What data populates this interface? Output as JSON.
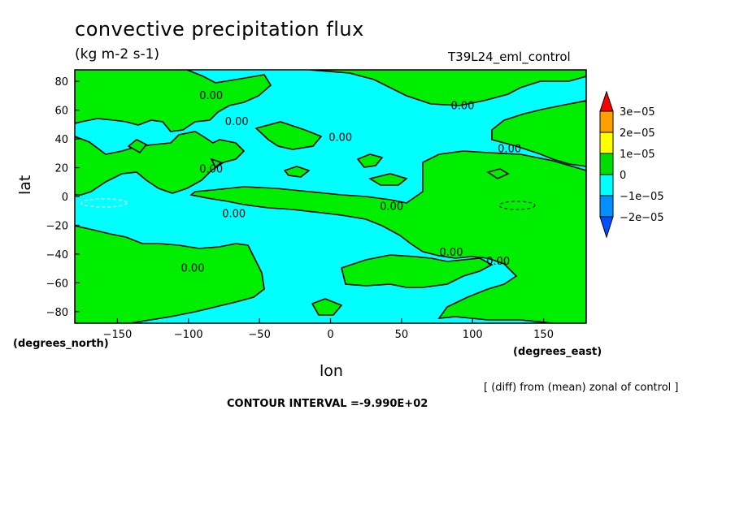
{
  "header": {
    "title": "convective precipitation flux",
    "units": "(kg m-2 s-1)",
    "experiment": "T39L24_eml_control"
  },
  "footer": {
    "note": "[ (diff) from (mean) zonal of control ]",
    "contour_interval": "CONTOUR INTERVAL =-9.990E+02"
  },
  "chart_data": {
    "type": "heatmap",
    "title": "convective precipitation flux",
    "subtitle": "(kg m-2 s-1)",
    "xlabel": "lon",
    "ylabel": "lat",
    "x_units": "(degrees_east)",
    "y_units": "(degrees_north)",
    "xlim": [
      -180,
      180
    ],
    "ylim": [
      -88,
      88
    ],
    "x_ticks": [
      -150,
      -100,
      -50,
      0,
      50,
      100,
      150
    ],
    "x_tick_labels": [
      "−150",
      "−100",
      "−50",
      "0",
      "50",
      "100",
      "150"
    ],
    "y_ticks": [
      80,
      60,
      40,
      20,
      0,
      -20,
      -40,
      -60,
      -80
    ],
    "y_tick_labels": [
      "80",
      "60",
      "40",
      "20",
      "0",
      "−20",
      "−40",
      "−60",
      "−80"
    ],
    "colorbar": {
      "levels": [
        {
          "label": "3e−05",
          "color": "#ff0000"
        },
        {
          "label": "2e−05",
          "color": "#ffa000"
        },
        {
          "label": "1e−05",
          "color": "#ffff00"
        },
        {
          "label": "0",
          "color": "#00dd00"
        },
        {
          "label": "−1e−05",
          "color": "#00ffff"
        },
        {
          "label": "−2e−05",
          "color": "#0090ff"
        }
      ],
      "colors_drawn": [
        "#ff0000",
        "#ffa000",
        "#ffff00",
        "#00dd00",
        "#00ffff",
        "#0090ff",
        "#0050ff"
      ],
      "position": "right"
    },
    "field_colors": {
      "positive": "#00ee00",
      "negative": "#00ffff"
    },
    "contour_labels": [
      {
        "text": "0.00",
        "lon": -84,
        "lat": 70
      },
      {
        "text": "0.00",
        "lon": -66,
        "lat": 52
      },
      {
        "text": "0.00",
        "lon": 7,
        "lat": 41
      },
      {
        "text": "0.00",
        "lon": 93,
        "lat": 63
      },
      {
        "text": "0.00",
        "lon": 126,
        "lat": 33
      },
      {
        "text": "0.00",
        "lon": -84,
        "lat": 19
      },
      {
        "text": "0.00",
        "lon": -68,
        "lat": -12
      },
      {
        "text": "0.00",
        "lon": 43,
        "lat": -7
      },
      {
        "text": "0.00",
        "lon": 85,
        "lat": -39
      },
      {
        "text": "0.00",
        "lon": 118,
        "lat": -45
      },
      {
        "text": "0.00",
        "lon": -97,
        "lat": -50
      }
    ],
    "grid": false
  }
}
